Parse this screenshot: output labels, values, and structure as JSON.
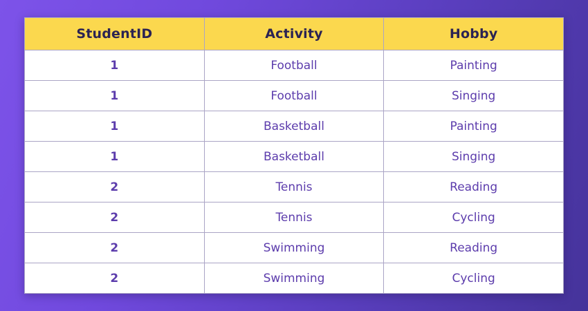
{
  "background": {
    "gradient_start": "#7d53e9",
    "gradient_end": "#45339a"
  },
  "table_style": {
    "header_bg": "#fbd84e",
    "header_text_color": "#2b2353",
    "body_bg": "#ffffff",
    "body_text_color": "#5c3cac",
    "grid_line_color": "#aaa4c5"
  },
  "chart_data": {
    "type": "table",
    "columns": [
      "StudentID",
      "Activity",
      "Hobby"
    ],
    "rows": [
      [
        "1",
        "Football",
        "Painting"
      ],
      [
        "1",
        "Football",
        "Singing"
      ],
      [
        "1",
        "Basketball",
        "Painting"
      ],
      [
        "1",
        "Basketball",
        "Singing"
      ],
      [
        "2",
        "Tennis",
        "Reading"
      ],
      [
        "2",
        "Tennis",
        "Cycling"
      ],
      [
        "2",
        "Swimming",
        "Reading"
      ],
      [
        "2",
        "Swimming",
        "Cycling"
      ]
    ]
  }
}
